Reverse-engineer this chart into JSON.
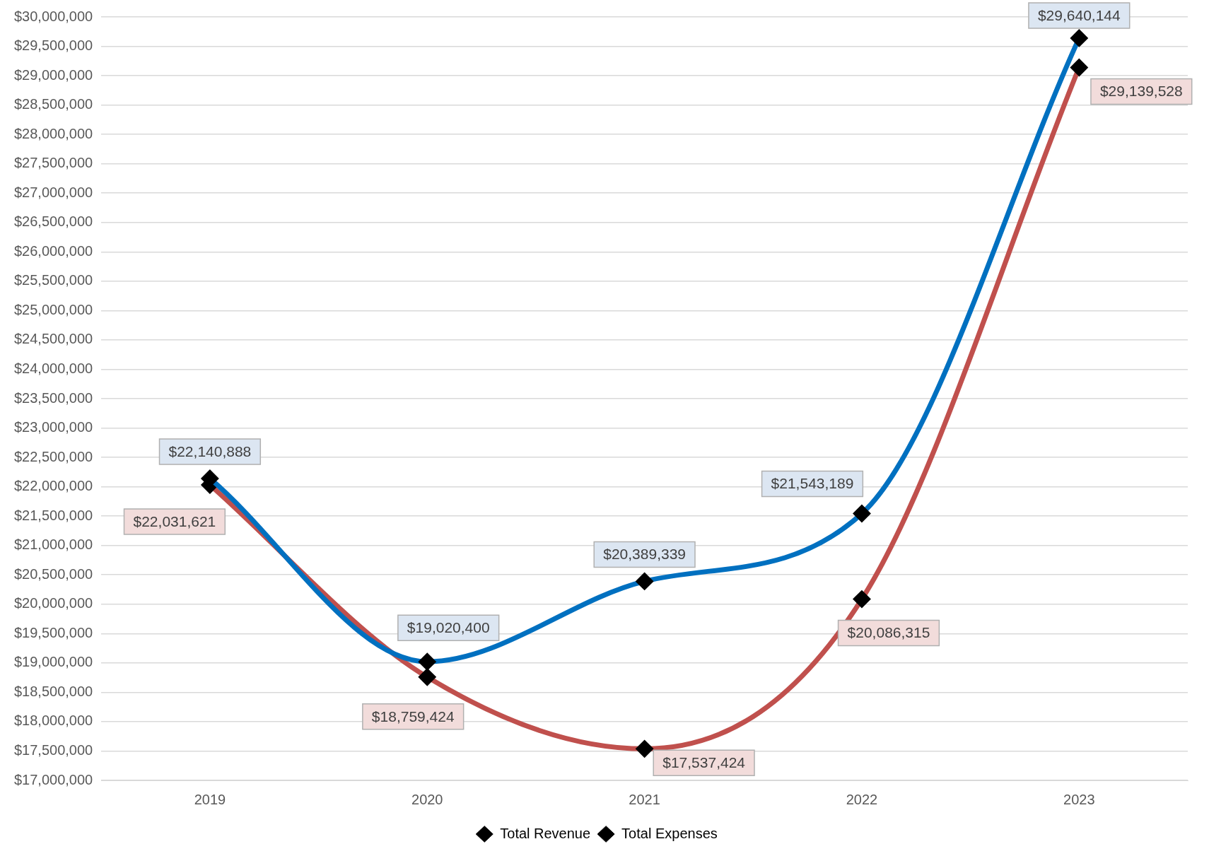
{
  "chart_data": {
    "type": "line",
    "categories": [
      "2019",
      "2020",
      "2021",
      "2022",
      "2023"
    ],
    "series": [
      {
        "name": "Total Revenue",
        "color": "#0070c0",
        "values": [
          22140888,
          19020400,
          20389339,
          21543189,
          29640144
        ],
        "value_labels": [
          "$22,140,888",
          "$19,020,400",
          "$20,389,339",
          "$21,543,189",
          "$29,640,144"
        ]
      },
      {
        "name": "Total Expenses",
        "color": "#c0504d",
        "values": [
          22031621,
          18759424,
          17537424,
          20086315,
          29139528
        ],
        "value_labels": [
          "$22,031,621",
          "$18,759,424",
          "$17,537,424",
          "$20,086,315",
          "$29,139,528"
        ]
      }
    ],
    "ylim": [
      17000000,
      30000000
    ],
    "yticks": [
      {
        "value": 17000000,
        "label": "$17,000,000"
      },
      {
        "value": 17500000,
        "label": "$17,500,000"
      },
      {
        "value": 18000000,
        "label": "$18,000,000"
      },
      {
        "value": 18500000,
        "label": "$18,500,000"
      },
      {
        "value": 19000000,
        "label": "$19,000,000"
      },
      {
        "value": 19500000,
        "label": "$19,500,000"
      },
      {
        "value": 20000000,
        "label": "$20,000,000"
      },
      {
        "value": 20500000,
        "label": "$20,500,000"
      },
      {
        "value": 21000000,
        "label": "$21,000,000"
      },
      {
        "value": 21500000,
        "label": "$21,500,000"
      },
      {
        "value": 22000000,
        "label": "$22,000,000"
      },
      {
        "value": 22500000,
        "label": "$22,500,000"
      },
      {
        "value": 23000000,
        "label": "$23,000,000"
      },
      {
        "value": 23500000,
        "label": "$23,500,000"
      },
      {
        "value": 24000000,
        "label": "$24,000,000"
      },
      {
        "value": 24500000,
        "label": "$24,500,000"
      },
      {
        "value": 25000000,
        "label": "$25,000,000"
      },
      {
        "value": 25500000,
        "label": "$25,500,000"
      },
      {
        "value": 26000000,
        "label": "$26,000,000"
      },
      {
        "value": 26500000,
        "label": "$26,500,000"
      },
      {
        "value": 27000000,
        "label": "$27,000,000"
      },
      {
        "value": 27500000,
        "label": "$27,500,000"
      },
      {
        "value": 28000000,
        "label": "$28,000,000"
      },
      {
        "value": 28500000,
        "label": "$28,500,000"
      },
      {
        "value": 29000000,
        "label": "$29,000,000"
      },
      {
        "value": 29500000,
        "label": "$29,500,000"
      },
      {
        "value": 30000000,
        "label": "$30,000,000"
      }
    ],
    "grid": "y",
    "legend": "bottom",
    "marker": "diamond",
    "line_style": "solid"
  }
}
